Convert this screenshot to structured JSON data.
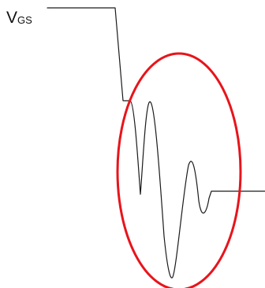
{
  "signal": {
    "label_main": "V",
    "label_sub": "GS"
  },
  "colors": {
    "trace": "#1a1a1a",
    "highlight": "#e8141b",
    "background": "#ffffff"
  }
}
